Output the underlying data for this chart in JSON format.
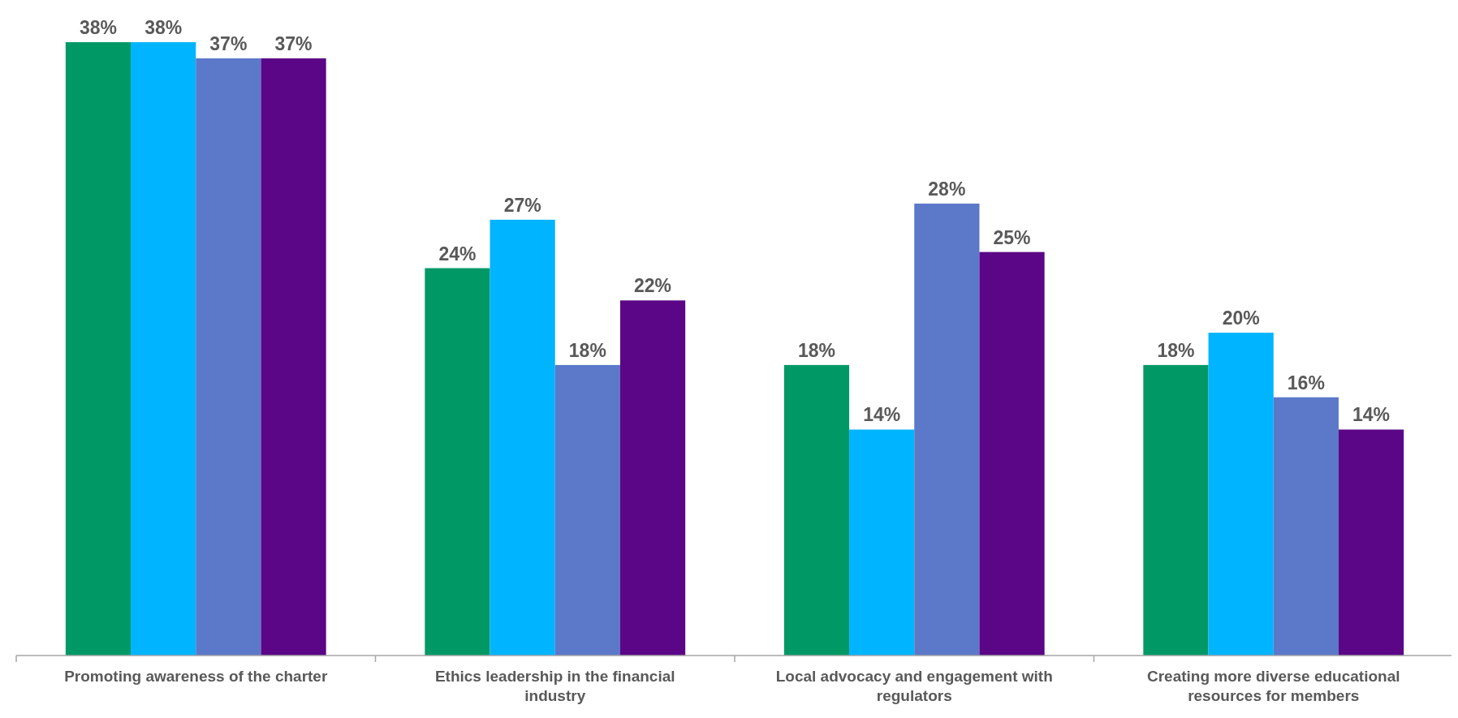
{
  "chart_data": {
    "type": "bar",
    "categories": [
      "Promoting awareness of the charter",
      "Ethics leadership in the financial industry",
      "Local advocacy and engagement with regulators",
      "Creating more diverse educational resources for members"
    ],
    "series": [
      {
        "color": "#009966",
        "values": [
          38,
          24,
          18,
          18
        ],
        "value_labels": [
          "38%",
          "24%",
          "18%",
          "18%"
        ]
      },
      {
        "color": "#00b4ff",
        "values": [
          38,
          27,
          14,
          20
        ],
        "value_labels": [
          "38%",
          "27%",
          "14%",
          "20%"
        ]
      },
      {
        "color": "#5b78c9",
        "values": [
          37,
          18,
          28,
          16
        ],
        "value_labels": [
          "37%",
          "18%",
          "28%",
          "16%"
        ]
      },
      {
        "color": "#5b0587",
        "values": [
          37,
          22,
          25,
          14
        ],
        "value_labels": [
          "37%",
          "22%",
          "25%",
          "14%"
        ]
      }
    ]
  }
}
